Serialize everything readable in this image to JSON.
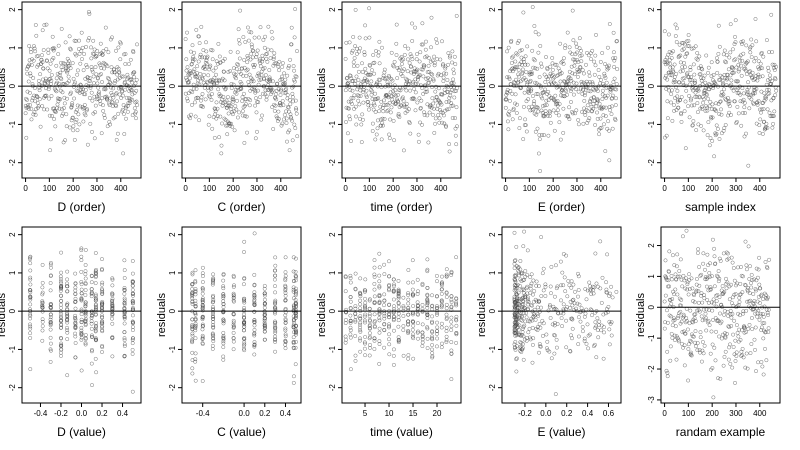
{
  "chart_data": [
    {
      "type": "scatter",
      "xlabel": "D (order)",
      "ylabel": "residuals",
      "xticks": [
        0,
        100,
        200,
        300,
        400
      ],
      "xticklabels": [
        "0",
        "100",
        "200",
        "300",
        "400"
      ],
      "xlim": [
        -15,
        485
      ],
      "yticks": [
        -2,
        -1,
        0,
        1,
        2
      ],
      "yticklabels": [
        "-2",
        "-1",
        "0",
        "1",
        "2"
      ],
      "ylim": [
        -2.4,
        2.2
      ],
      "hline": 0,
      "kind": "order",
      "n": 470,
      "seed": 11
    },
    {
      "type": "scatter",
      "xlabel": "C (order)",
      "ylabel": "residuals",
      "xticks": [
        0,
        100,
        200,
        300,
        400
      ],
      "xticklabels": [
        "0",
        "100",
        "200",
        "300",
        "400"
      ],
      "xlim": [
        -15,
        485
      ],
      "yticks": [
        -2,
        -1,
        0,
        1,
        2
      ],
      "yticklabels": [
        "-2",
        "-1",
        "0",
        "1",
        "2"
      ],
      "ylim": [
        -2.4,
        2.2
      ],
      "hline": 0,
      "kind": "order",
      "n": 470,
      "seed": 23
    },
    {
      "type": "scatter",
      "xlabel": "time (order)",
      "ylabel": "residuals",
      "xticks": [
        0,
        100,
        200,
        300,
        400
      ],
      "xticklabels": [
        "0",
        "100",
        "200",
        "300",
        "400"
      ],
      "xlim": [
        -15,
        485
      ],
      "yticks": [
        -2,
        -1,
        0,
        1,
        2
      ],
      "yticklabels": [
        "-2",
        "-1",
        "0",
        "1",
        "2"
      ],
      "ylim": [
        -2.4,
        2.2
      ],
      "hline": 0,
      "kind": "order",
      "n": 470,
      "seed": 37
    },
    {
      "type": "scatter",
      "xlabel": "E (order)",
      "ylabel": "residuals",
      "xticks": [
        0,
        100,
        200,
        300,
        400
      ],
      "xticklabels": [
        "0",
        "100",
        "200",
        "300",
        "400"
      ],
      "xlim": [
        -15,
        485
      ],
      "yticks": [
        -2,
        -1,
        0,
        1,
        2
      ],
      "yticklabels": [
        "-2",
        "-1",
        "0",
        "1",
        "2"
      ],
      "ylim": [
        -2.4,
        2.2
      ],
      "hline": 0,
      "kind": "order",
      "n": 470,
      "seed": 41
    },
    {
      "type": "scatter",
      "xlabel": "sample index",
      "ylabel": "residuals",
      "xticks": [
        0,
        100,
        200,
        300,
        400
      ],
      "xticklabels": [
        "0",
        "100",
        "200",
        "300",
        "400"
      ],
      "xlim": [
        -15,
        485
      ],
      "yticks": [
        -2,
        -1,
        0,
        1,
        2
      ],
      "yticklabels": [
        "-2",
        "-1",
        "0",
        "1",
        "2"
      ],
      "ylim": [
        -2.4,
        2.2
      ],
      "hline": 0,
      "kind": "order",
      "n": 470,
      "seed": 53
    },
    {
      "type": "scatter",
      "xlabel": "D (value)",
      "ylabel": "residuals",
      "xticks": [
        -0.4,
        -0.2,
        0,
        0.2,
        0.4
      ],
      "xticklabels": [
        "-0.4",
        "-0.2",
        "0.0",
        "0.2",
        "0.4"
      ],
      "xlim": [
        -0.58,
        0.58
      ],
      "yticks": [
        -2,
        -1,
        0,
        1,
        2
      ],
      "yticklabels": [
        "-2",
        "-1",
        "0",
        "1",
        "2"
      ],
      "ylim": [
        -2.4,
        2.2
      ],
      "hline": 0,
      "kind": "levels",
      "levels": [
        -0.5,
        -0.38,
        -0.3,
        -0.2,
        -0.14,
        -0.06,
        0,
        0.04,
        0.1,
        0.14,
        0.2,
        0.3,
        0.42,
        0.5
      ],
      "n": 430,
      "seed": 61
    },
    {
      "type": "scatter",
      "xlabel": "C (value)",
      "ylabel": "residuals",
      "xticks": [
        -0.4,
        0,
        0.2,
        0.4
      ],
      "xticklabels": [
        "-0.4",
        "0.0",
        "0.2",
        "0.4"
      ],
      "xlim": [
        -0.6,
        0.55
      ],
      "yticks": [
        -2,
        -1,
        0,
        1,
        2
      ],
      "yticklabels": [
        "-2",
        "-1",
        "0",
        "1",
        "2"
      ],
      "ylim": [
        -2.4,
        2.2
      ],
      "hline": 0,
      "kind": "levels",
      "levels": [
        -0.5,
        -0.47,
        -0.4,
        -0.3,
        -0.2,
        -0.1,
        0,
        0.1,
        0.2,
        0.3,
        0.4,
        0.48,
        0.5
      ],
      "n": 430,
      "seed": 71
    },
    {
      "type": "scatter",
      "xlabel": "time (value)",
      "ylabel": "residuals",
      "xticks": [
        5,
        10,
        15,
        20
      ],
      "xticklabels": [
        "5",
        "10",
        "15",
        "20"
      ],
      "xlim": [
        0.2,
        25
      ],
      "yticks": [
        -2,
        -1,
        0,
        1,
        2
      ],
      "yticklabels": [
        "-2",
        "-1",
        "0",
        "1",
        "2"
      ],
      "ylim": [
        -2.4,
        2.2
      ],
      "hline": 0,
      "kind": "levels",
      "levels": [
        1,
        2,
        3,
        4,
        5,
        6,
        7,
        8,
        9,
        10,
        11,
        12,
        13,
        14,
        15,
        16,
        17,
        18,
        19,
        20,
        21,
        22,
        23,
        24
      ],
      "n": 430,
      "seed": 83
    },
    {
      "type": "scatter",
      "xlabel": "E (value)",
      "ylabel": "residuals",
      "xticks": [
        -0.2,
        0,
        0.2,
        0.4,
        0.6
      ],
      "xticklabels": [
        "-0.2",
        "0.0",
        "0.2",
        "0.4",
        "0.6"
      ],
      "xlim": [
        -0.42,
        0.72
      ],
      "yticks": [
        -2,
        -1,
        0,
        1,
        2
      ],
      "yticklabels": [
        "-2",
        "-1",
        "0",
        "1",
        "2"
      ],
      "ylim": [
        -2.4,
        2.2
      ],
      "hline": 0,
      "kind": "skew",
      "n": 430,
      "seed": 97
    },
    {
      "type": "scatter",
      "xlabel": "randam example",
      "ylabel": "residuals",
      "xticks": [
        0,
        100,
        200,
        300,
        400
      ],
      "xticklabels": [
        "0",
        "100",
        "200",
        "300",
        "400"
      ],
      "xlim": [
        -15,
        485
      ],
      "yticks": [
        -3,
        -2,
        -1,
        0,
        1,
        2
      ],
      "yticklabels": [
        "-3",
        "-2",
        "-1",
        "0",
        "1",
        "2"
      ],
      "ylim": [
        -3.1,
        2.6
      ],
      "hline": 0,
      "kind": "random",
      "n": 440,
      "seed": 101
    }
  ]
}
